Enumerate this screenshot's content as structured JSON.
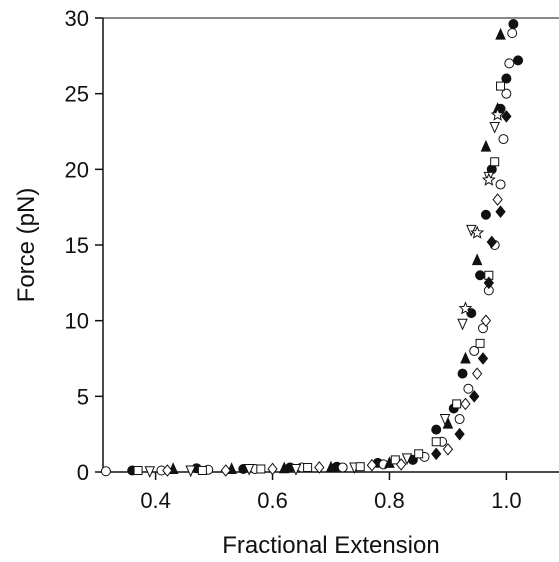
{
  "chart_data": {
    "type": "scatter",
    "title": "",
    "xlabel": "Fractional Extension",
    "ylabel": "Force (pN)",
    "xlim": [
      0.31,
      1.09
    ],
    "ylim": [
      0,
      30
    ],
    "xticks": [
      0.4,
      0.6,
      0.8,
      1.0
    ],
    "xtick_labels": [
      "0.4",
      "0.6",
      "0.8",
      "1.0"
    ],
    "yticks": [
      0,
      5,
      10,
      15,
      20,
      25,
      30
    ],
    "ytick_labels": [
      "0",
      "5",
      "10",
      "15",
      "20",
      "25",
      "30"
    ],
    "grid": false,
    "legend": "none",
    "colors": {
      "marker_dark": "#111111",
      "marker_hollow_fill": "#ffffff",
      "axis": "#111111"
    },
    "series": [
      {
        "marker": "filled-circle",
        "points": [
          [
            0.36,
            0.1
          ],
          [
            0.47,
            0.25
          ],
          [
            0.55,
            0.2
          ],
          [
            0.63,
            0.3
          ],
          [
            0.71,
            0.35
          ],
          [
            0.78,
            0.6
          ],
          [
            0.84,
            0.8
          ],
          [
            0.88,
            2.8
          ],
          [
            0.91,
            4.2
          ],
          [
            0.925,
            6.5
          ],
          [
            0.94,
            10.5
          ],
          [
            0.955,
            13
          ],
          [
            0.965,
            17
          ],
          [
            0.975,
            20
          ],
          [
            0.99,
            24
          ],
          [
            1.0,
            26
          ],
          [
            1.012,
            29.6
          ],
          [
            1.02,
            27.2
          ]
        ]
      },
      {
        "marker": "open-circle",
        "points": [
          [
            0.315,
            0.05
          ],
          [
            0.41,
            0.1
          ],
          [
            0.49,
            0.15
          ],
          [
            0.57,
            0.2
          ],
          [
            0.65,
            0.3
          ],
          [
            0.72,
            0.3
          ],
          [
            0.79,
            0.5
          ],
          [
            0.86,
            1.0
          ],
          [
            0.89,
            2.0
          ],
          [
            0.92,
            3.5
          ],
          [
            0.935,
            5.5
          ],
          [
            0.945,
            8.0
          ],
          [
            0.96,
            9.5
          ],
          [
            0.97,
            12
          ],
          [
            0.98,
            15
          ],
          [
            0.99,
            19
          ],
          [
            0.995,
            22
          ],
          [
            1.0,
            25
          ],
          [
            1.005,
            27
          ],
          [
            1.01,
            29
          ]
        ]
      },
      {
        "marker": "filled-triangle-up",
        "points": [
          [
            0.43,
            0.2
          ],
          [
            0.53,
            0.2
          ],
          [
            0.62,
            0.25
          ],
          [
            0.7,
            0.3
          ],
          [
            0.8,
            0.6
          ],
          [
            0.9,
            3.2
          ],
          [
            0.93,
            7.5
          ],
          [
            0.95,
            14
          ],
          [
            0.965,
            21.5
          ],
          [
            0.985,
            24
          ],
          [
            0.99,
            28.9
          ]
        ]
      },
      {
        "marker": "open-triangle-down",
        "points": [
          [
            0.39,
            0.05
          ],
          [
            0.46,
            0.1
          ],
          [
            0.56,
            0.2
          ],
          [
            0.64,
            0.2
          ],
          [
            0.74,
            0.3
          ],
          [
            0.83,
            0.9
          ],
          [
            0.895,
            3.5
          ],
          [
            0.925,
            9.8
          ],
          [
            0.94,
            16
          ],
          [
            0.97,
            19.5
          ],
          [
            0.98,
            22.8
          ]
        ]
      },
      {
        "marker": "open-square",
        "points": [
          [
            0.37,
            0.1
          ],
          [
            0.48,
            0.1
          ],
          [
            0.58,
            0.2
          ],
          [
            0.66,
            0.3
          ],
          [
            0.75,
            0.35
          ],
          [
            0.81,
            0.8
          ],
          [
            0.85,
            1.2
          ],
          [
            0.88,
            2.0
          ],
          [
            0.915,
            4.5
          ],
          [
            0.955,
            8.5
          ],
          [
            0.97,
            13
          ],
          [
            0.98,
            20.5
          ],
          [
            0.99,
            25.5
          ]
        ]
      },
      {
        "marker": "open-diamond",
        "points": [
          [
            0.42,
            0.1
          ],
          [
            0.52,
            0.1
          ],
          [
            0.6,
            0.2
          ],
          [
            0.68,
            0.3
          ],
          [
            0.77,
            0.45
          ],
          [
            0.82,
            0.5
          ],
          [
            0.9,
            1.5
          ],
          [
            0.93,
            4.5
          ],
          [
            0.95,
            6.5
          ],
          [
            0.965,
            10
          ],
          [
            0.985,
            18
          ]
        ]
      },
      {
        "marker": "filled-diamond",
        "points": [
          [
            0.88,
            1.2
          ],
          [
            0.92,
            2.5
          ],
          [
            0.945,
            5
          ],
          [
            0.96,
            7.5
          ],
          [
            0.97,
            12.5
          ],
          [
            0.975,
            15.2
          ],
          [
            0.99,
            17.2
          ],
          [
            1.0,
            23.5
          ]
        ]
      },
      {
        "marker": "open-star",
        "points": [
          [
            0.93,
            10.8
          ],
          [
            0.95,
            15.8
          ],
          [
            0.97,
            19.3
          ],
          [
            0.985,
            23.6
          ]
        ]
      }
    ]
  }
}
